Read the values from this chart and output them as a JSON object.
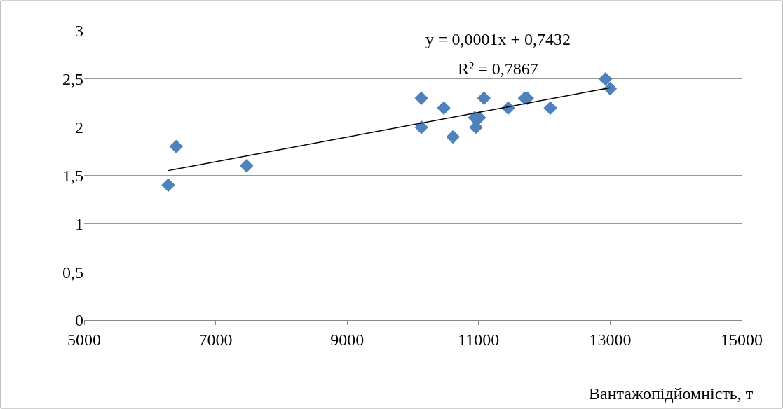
{
  "chart_data": {
    "type": "scatter",
    "xlabel": "Вантажопідйомність, т",
    "annotations": [
      "y = 0,0001x + 0,7432",
      "R² = 0,7867"
    ],
    "xlim": [
      5000,
      15000
    ],
    "xticks": [
      5000,
      7000,
      9000,
      11000,
      13000,
      15000
    ],
    "ylim": [
      0,
      3
    ],
    "yticks": [
      0,
      {
        "value": 0.5,
        "label": "0,5"
      },
      1,
      {
        "value": 1.5,
        "label": "1,5"
      },
      2,
      {
        "value": 2.5,
        "label": "2,5"
      },
      3
    ],
    "grid": "y",
    "legend": false,
    "series": [
      {
        "marker": "diamond",
        "color": "#4f81bd",
        "x": [
          6280,
          6400,
          7470,
          10130,
          10130,
          10470,
          10610,
          10940,
          10960,
          11010,
          11080,
          11450,
          11700,
          11740,
          12090,
          12930,
          13000
        ],
        "values": [
          1.4,
          1.8,
          1.6,
          2.3,
          2.0,
          2.2,
          1.9,
          2.1,
          2.0,
          2.1,
          2.3,
          2.2,
          2.3,
          2.3,
          2.2,
          2.5,
          2.4
        ]
      },
      {
        "type": "line",
        "marker": "none",
        "color": "#000000",
        "x": [
          6280,
          13000
        ],
        "values": [
          1.55,
          2.41
        ]
      }
    ]
  }
}
